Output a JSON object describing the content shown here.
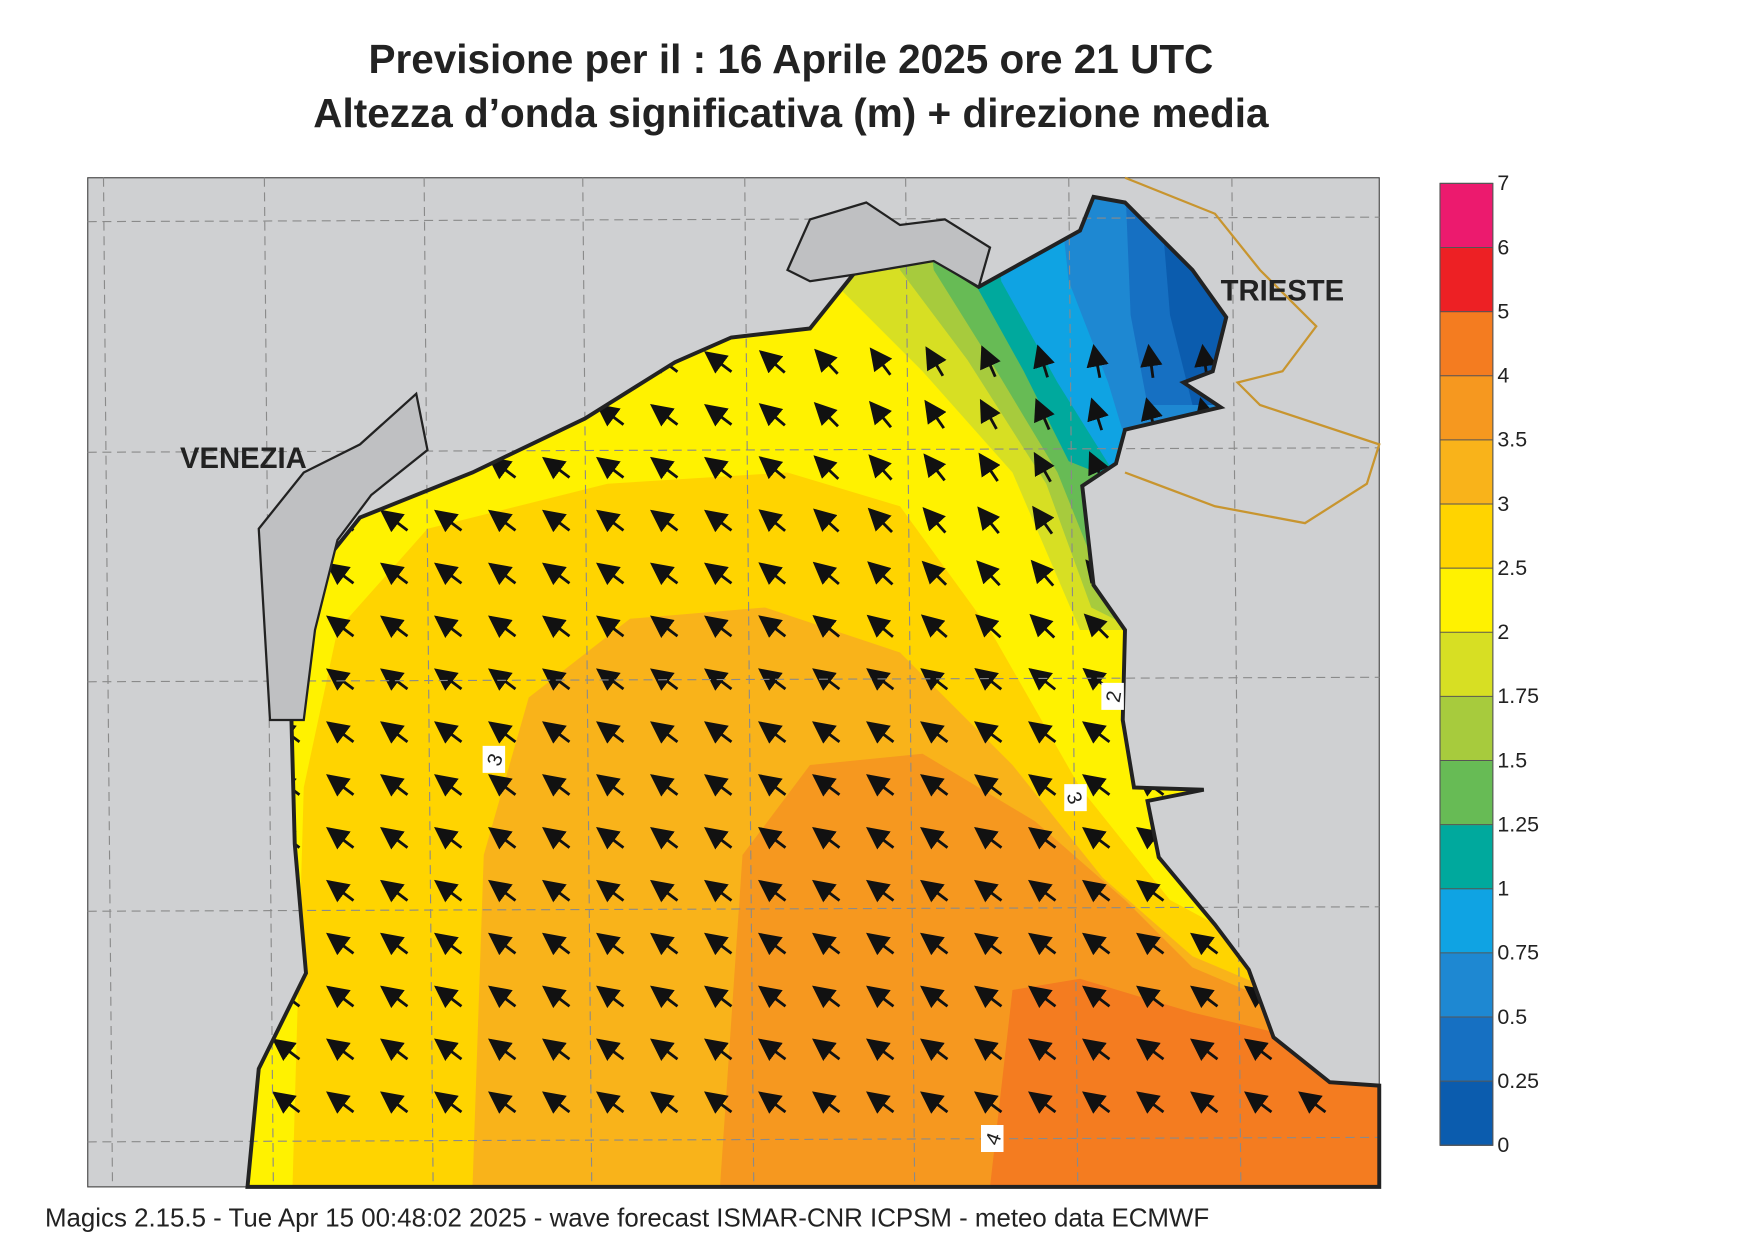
{
  "header": {
    "title": "Previsione per il  :  16   Aprile  2025   ore 21 UTC",
    "subtitle": "Altezza d’onda significativa (m) + direzione media"
  },
  "map": {
    "places": [
      "VENEZIA",
      "TRIESTE"
    ],
    "contour_labels": [
      "2",
      "3",
      "3",
      "4"
    ]
  },
  "colorbar": {
    "levels": [
      0,
      0.25,
      0.5,
      0.75,
      1,
      1.25,
      1.5,
      1.75,
      2,
      2.5,
      3,
      3.5,
      4,
      5,
      6,
      7
    ],
    "colors": [
      "#0b5cae",
      "#1670c2",
      "#1e88d2",
      "#0fa3e3",
      "#00a99d",
      "#67bb55",
      "#a7cb3d",
      "#d7df23",
      "#fff200",
      "#ffd400",
      "#f9b31a",
      "#f6981f",
      "#f47c20",
      "#ed2024",
      "#ec1a6e"
    ]
  },
  "footer": "Magics 2.15.5 - Tue Apr 15 00:48:02 2025 - wave forecast  ISMAR-CNR  ICPSM - meteo data   ECMWF"
}
